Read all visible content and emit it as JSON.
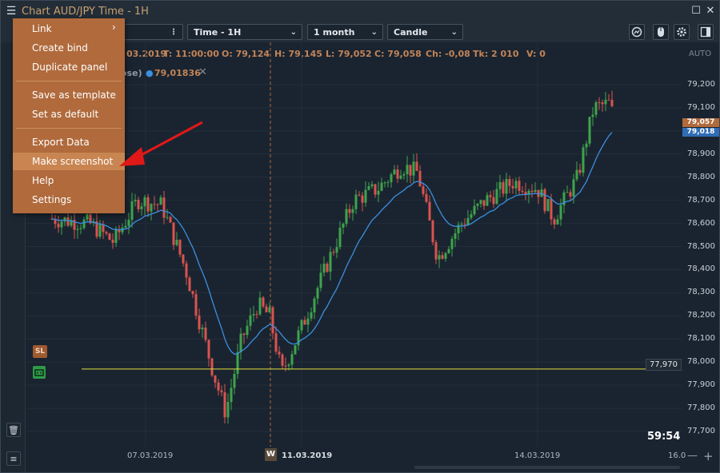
{
  "window": {
    "title": "Chart AUD/JPY Time - 1H"
  },
  "toolbar": {
    "timeframe": "Time - 1H",
    "period": "1 month",
    "chart_type": "Candle"
  },
  "ohlc": {
    "date": "03.2019",
    "time": "T: 11:00:00",
    "open": "O: 79,124",
    "high": "H: 79,145",
    "low": "L: 79,052",
    "close": "C: 79,058",
    "change": "Ch: -0,08",
    "ticks": "Tk: 2 010",
    "volume": "V: 0"
  },
  "indicator": {
    "name_partial": "ose)",
    "value": "79,01836",
    "color": "#3b8fe0"
  },
  "menu": {
    "items": [
      "Link",
      "Create bind",
      "Duplicate panel",
      "Save as template",
      "Set as default",
      "Export Data",
      "Make screenshot",
      "Help",
      "Settings"
    ],
    "highlighted": "Make screenshot"
  },
  "price_axis": {
    "auto_label": "AUTO",
    "ticks": [
      "79,200",
      "79,100",
      "78,900",
      "78,800",
      "78,700",
      "78,600",
      "78,500",
      "78,400",
      "78,300",
      "78,200",
      "78,100",
      "78,000",
      "77,900",
      "77,800",
      "77,700"
    ],
    "last_price": "79,057",
    "ma_price": "79,018",
    "last_color": "#b06a3c",
    "ma_color": "#2f6db5"
  },
  "level_line": {
    "label": "77,970",
    "color": "#e0e040"
  },
  "time_axis": {
    "labels": [
      "07.03.2019",
      "11.03.2019",
      "14.03.2019",
      "16.0"
    ],
    "week_marker": "W"
  },
  "timer": "59:54",
  "left_markers": {
    "sl": "SL"
  },
  "colors": {
    "bull": "#3fa34d",
    "bear": "#d9534f",
    "ma": "#3b8fe0",
    "accent": "#b06a3c"
  }
}
